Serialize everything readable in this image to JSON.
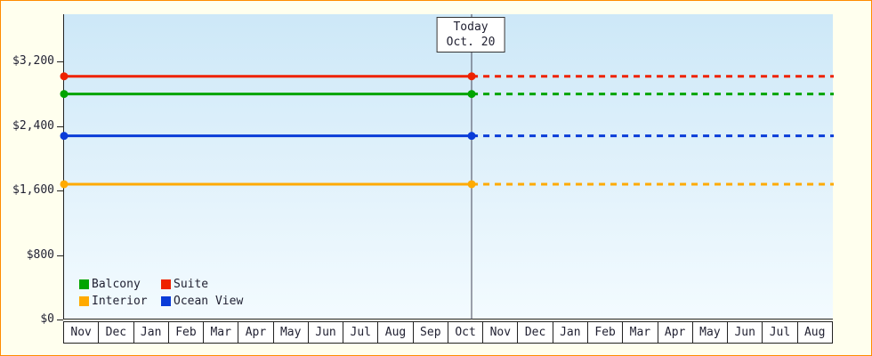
{
  "chart_data": {
    "type": "line",
    "title": "",
    "y_axis": {
      "ticks": [
        {
          "value": 0,
          "label": "$0"
        },
        {
          "value": 800,
          "label": "$800"
        },
        {
          "value": 1600,
          "label": "$1,600"
        },
        {
          "value": 2400,
          "label": "$2,400"
        },
        {
          "value": 3200,
          "label": "$3,200"
        }
      ],
      "ylim": [
        0,
        3790
      ],
      "grid": "off"
    },
    "x_axis": {
      "months": [
        "Nov",
        "Dec",
        "Jan",
        "Feb",
        "Mar",
        "Apr",
        "May",
        "Jun",
        "Jul",
        "Aug",
        "Sep",
        "Oct",
        "Nov",
        "Dec",
        "Jan",
        "Feb",
        "Mar",
        "Apr",
        "May",
        "Jun",
        "Jul",
        "Aug"
      ]
    },
    "today": {
      "line1": "Today",
      "line2": "Oct. 20",
      "month_index": 11,
      "day_fraction": 0.65
    },
    "series": [
      {
        "name": "Suite",
        "color": "#ee2200",
        "value": 3020,
        "style": "solid-then-dashed"
      },
      {
        "name": "Balcony",
        "color": "#00a400",
        "value": 2800,
        "style": "solid-then-dashed"
      },
      {
        "name": "Ocean View",
        "color": "#0a3cd8",
        "value": 2280,
        "style": "solid-then-dashed"
      },
      {
        "name": "Interior",
        "color": "#ffaa00",
        "value": 1680,
        "style": "solid-then-dashed"
      }
    ],
    "legend": [
      {
        "label": "Balcony",
        "color": "#00a400"
      },
      {
        "label": "Suite",
        "color": "#ee2200"
      },
      {
        "label": "Interior",
        "color": "#ffaa00"
      },
      {
        "label": "Ocean View",
        "color": "#0a3cd8"
      }
    ],
    "legend_position": "bottom-left"
  }
}
